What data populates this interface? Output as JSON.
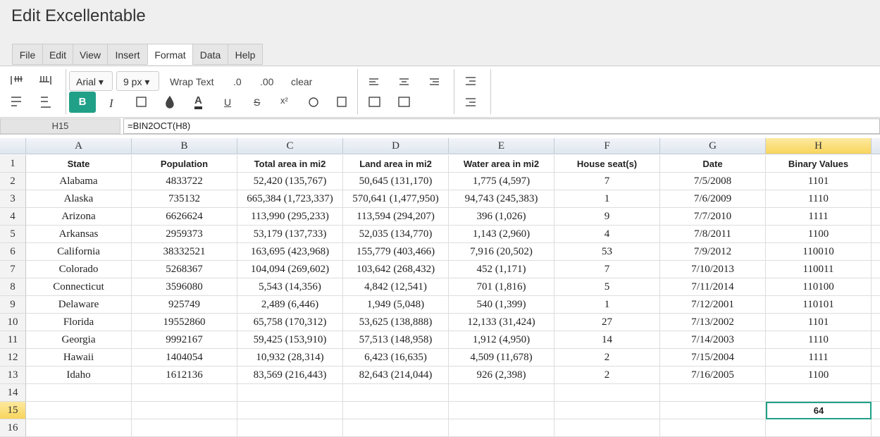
{
  "header": {
    "title": "Edit Excellentable"
  },
  "menu": {
    "items": [
      "File",
      "Edit",
      "View",
      "Insert",
      "Format",
      "Data",
      "Help"
    ],
    "active": 4
  },
  "toolbar": {
    "font": "Arial",
    "font_size": "9 px",
    "wrap_text": "Wrap Text",
    "decimal_1": ".0",
    "decimal_2": ".00",
    "clear": "clear",
    "bold": "B",
    "italic": "I",
    "font_color": "A",
    "underline": "U",
    "strike": "S",
    "superscript": "x²"
  },
  "formula_bar": {
    "cell": "H15",
    "formula": "=BIN2OCT(H8)"
  },
  "sheet": {
    "columns": [
      "A",
      "B",
      "C",
      "D",
      "E",
      "F",
      "G",
      "H"
    ],
    "row_numbers": [
      1,
      2,
      3,
      4,
      5,
      6,
      7,
      8,
      9,
      10,
      11,
      12,
      13,
      14,
      15,
      16
    ],
    "selected": {
      "row": 14,
      "col": 7
    },
    "rows": [
      [
        "State",
        "Population",
        "Total area in mi2",
        "Land area in mi2",
        "Water area in mi2",
        "House seat(s)",
        "Date",
        "Binary Values"
      ],
      [
        "Alabama",
        "4833722",
        "52,420 (135,767)",
        "50,645 (131,170)",
        "1,775 (4,597)",
        "7",
        "7/5/2008",
        "1101"
      ],
      [
        "Alaska",
        "735132",
        "665,384 (1,723,337)",
        "570,641 (1,477,950)",
        "94,743 (245,383)",
        "1",
        "7/6/2009",
        "1110"
      ],
      [
        "Arizona",
        "6626624",
        "113,990 (295,233)",
        "113,594 (294,207)",
        "396 (1,026)",
        "9",
        "7/7/2010",
        "1111"
      ],
      [
        "Arkansas",
        "2959373",
        "53,179 (137,733)",
        "52,035 (134,770)",
        "1,143 (2,960)",
        "4",
        "7/8/2011",
        "1100"
      ],
      [
        "California",
        "38332521",
        "163,695 (423,968)",
        "155,779 (403,466)",
        "7,916 (20,502)",
        "53",
        "7/9/2012",
        "110010"
      ],
      [
        "Colorado",
        "5268367",
        "104,094 (269,602)",
        "103,642 (268,432)",
        "452 (1,171)",
        "7",
        "7/10/2013",
        "110011"
      ],
      [
        "Connecticut",
        "3596080",
        "5,543 (14,356)",
        "4,842 (12,541)",
        "701 (1,816)",
        "5",
        "7/11/2014",
        "110100"
      ],
      [
        "Delaware",
        "925749",
        "2,489 (6,446)",
        "1,949 (5,048)",
        "540 (1,399)",
        "1",
        "7/12/2001",
        "110101"
      ],
      [
        "Florida",
        "19552860",
        "65,758 (170,312)",
        "53,625 (138,888)",
        "12,133 (31,424)",
        "27",
        "7/13/2002",
        "1101"
      ],
      [
        "Georgia",
        "9992167",
        "59,425 (153,910)",
        "57,513 (148,958)",
        "1,912 (4,950)",
        "14",
        "7/14/2003",
        "1110"
      ],
      [
        "Hawaii",
        "1404054",
        "10,932 (28,314)",
        "6,423 (16,635)",
        "4,509 (11,678)",
        "2",
        "7/15/2004",
        "1111"
      ],
      [
        "Idaho",
        "1612136",
        "83,569 (216,443)",
        "82,643 (214,044)",
        "926 (2,398)",
        "2",
        "7/16/2005",
        "1100"
      ],
      [
        null,
        null,
        null,
        null,
        null,
        null,
        null,
        null
      ],
      [
        null,
        null,
        null,
        null,
        null,
        null,
        null,
        "64"
      ],
      [
        null,
        null,
        null,
        null,
        null,
        null,
        null,
        null
      ]
    ]
  }
}
